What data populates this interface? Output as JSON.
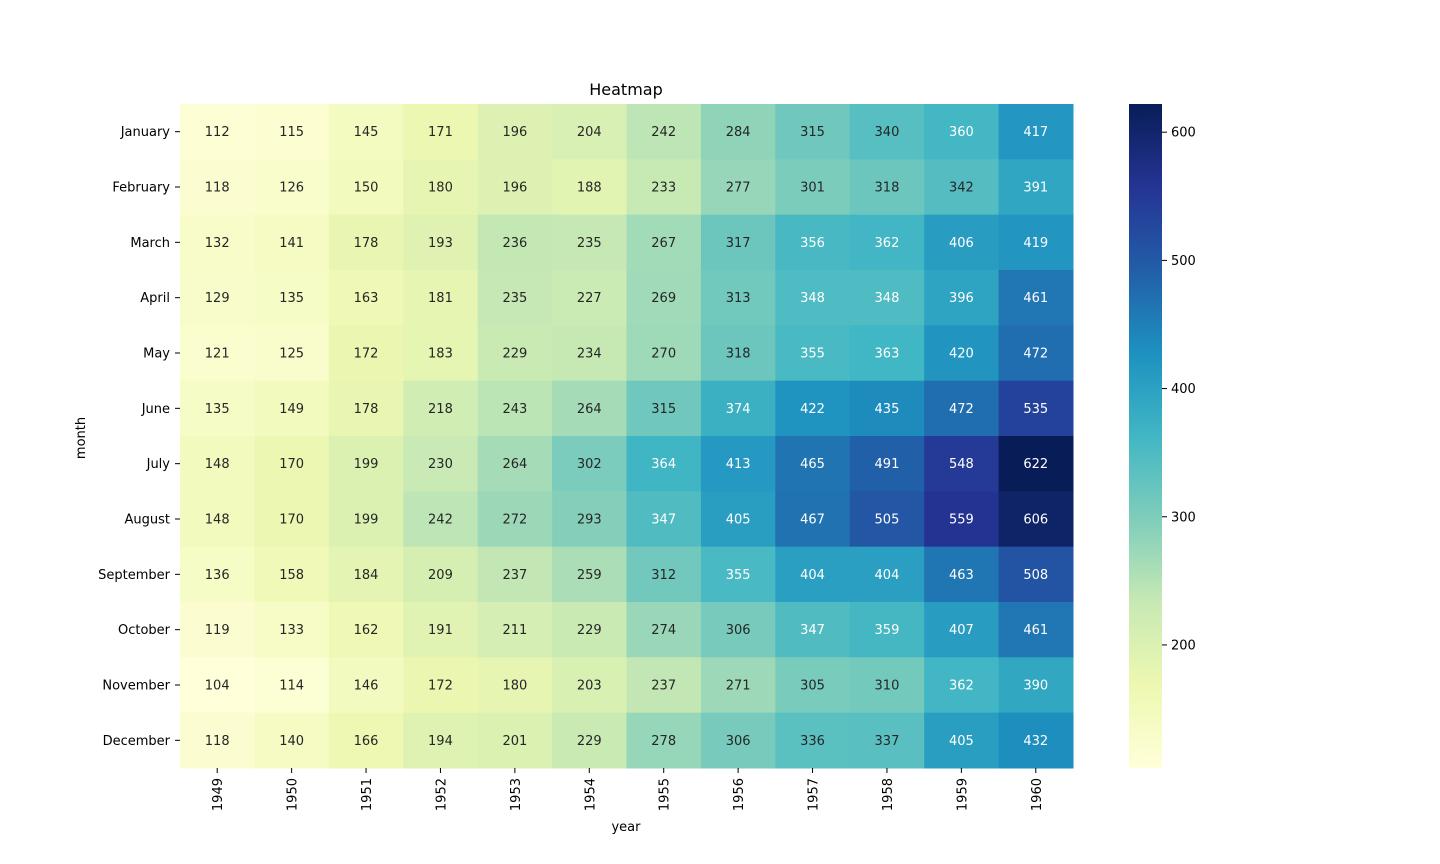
{
  "chart_data": {
    "type": "heatmap",
    "title": "Heatmap",
    "xlabel": "year",
    "ylabel": "month",
    "x": [
      "1949",
      "1950",
      "1951",
      "1952",
      "1953",
      "1954",
      "1955",
      "1956",
      "1957",
      "1958",
      "1959",
      "1960"
    ],
    "y": [
      "January",
      "February",
      "March",
      "April",
      "May",
      "June",
      "July",
      "August",
      "September",
      "October",
      "November",
      "December"
    ],
    "values": [
      [
        112,
        115,
        145,
        171,
        196,
        204,
        242,
        284,
        315,
        340,
        360,
        417
      ],
      [
        118,
        126,
        150,
        180,
        196,
        188,
        233,
        277,
        301,
        318,
        342,
        391
      ],
      [
        132,
        141,
        178,
        193,
        236,
        235,
        267,
        317,
        356,
        362,
        406,
        419
      ],
      [
        129,
        135,
        163,
        181,
        235,
        227,
        269,
        313,
        348,
        348,
        396,
        461
      ],
      [
        121,
        125,
        172,
        183,
        229,
        234,
        270,
        318,
        355,
        363,
        420,
        472
      ],
      [
        135,
        149,
        178,
        218,
        243,
        264,
        315,
        374,
        422,
        435,
        472,
        535
      ],
      [
        148,
        170,
        199,
        230,
        264,
        302,
        364,
        413,
        465,
        491,
        548,
        622
      ],
      [
        148,
        170,
        199,
        242,
        272,
        293,
        347,
        405,
        467,
        505,
        559,
        606
      ],
      [
        136,
        158,
        184,
        209,
        237,
        259,
        312,
        355,
        404,
        404,
        463,
        508
      ],
      [
        119,
        133,
        162,
        191,
        211,
        229,
        274,
        306,
        347,
        359,
        407,
        461
      ],
      [
        104,
        114,
        146,
        172,
        180,
        203,
        237,
        271,
        305,
        310,
        362,
        390
      ],
      [
        118,
        140,
        166,
        194,
        201,
        229,
        278,
        306,
        336,
        337,
        405,
        432
      ]
    ],
    "colormap": "YlGnBu",
    "colorbar": {
      "range": [
        104,
        622
      ],
      "ticks": [
        "200",
        "300",
        "400",
        "500",
        "600"
      ]
    },
    "annotated": true,
    "grid": false,
    "legend": "colorbar-right"
  }
}
